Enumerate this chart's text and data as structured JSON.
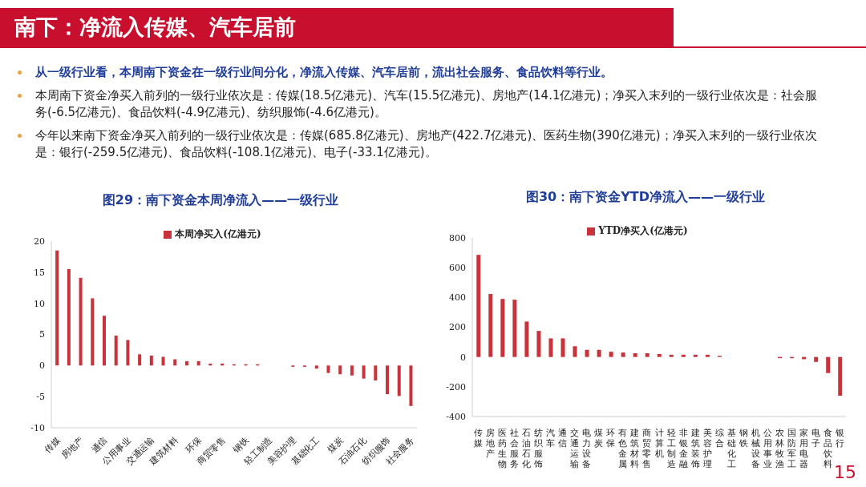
{
  "chart_data": [
    {
      "type": "other",
      "title": "南下：净流入传媒、汽车居前",
      "annotations": [
        "从一级行业看，本周南下资金在一级行业间分化，净流入传媒、汽车居前，流出社会服务、食品饮料等行业。",
        "本周南下资金净买入前列的一级行业依次是：传媒(18.5亿港元)、汽车(15.5亿港元)、房地产(14.1亿港元)；净买入末列的一级行业依次是：社会服务(-6.5亿港元)、食品饮料(-4.9亿港元)、纺织服饰(-4.6亿港元)。",
        "今年以来南下资金净买入前列的一级行业依次是：传媒(685.8亿港元)、房地产(422.7亿港元)、医药生物(390亿港元)；净买入末列的一级行业依次是：银行(-259.5亿港元)、食品饮料(-108.1亿港元)、电子(-33.1亿港元)。",
        "15"
      ]
    },
    {
      "type": "bar",
      "title": "图29：南下资金本周净流入——一级行业",
      "categories": [
        "传媒",
        null,
        "房地产",
        null,
        "通信",
        null,
        "公用事业",
        null,
        "交通运输",
        null,
        "建筑材料",
        null,
        "环保",
        null,
        "商贸零售",
        null,
        "钢铁",
        null,
        "轻工制造",
        null,
        "美容护理",
        null,
        "基础化工",
        null,
        "煤炭",
        null,
        "石油石化",
        null,
        "纺织服饰",
        null,
        "社会服务"
      ],
      "series": [
        {
          "name": "本周净买入(亿港元)",
          "color": "#c8323a",
          "values": [
            18.5,
            15.5,
            14.1,
            10.8,
            8.0,
            4.8,
            4.1,
            1.8,
            1.6,
            1.4,
            1.0,
            0.7,
            0.7,
            0.3,
            0.3,
            0.2,
            0.2,
            0.2,
            0,
            0,
            -0.2,
            -0.2,
            -0.5,
            -1.2,
            -1.4,
            -1.6,
            -2.1,
            -2.4,
            -4.6,
            -4.9,
            -6.5
          ]
        }
      ],
      "ylim": [
        -10,
        20
      ],
      "yticks": [
        -10,
        -5,
        0,
        5,
        10,
        15,
        20
      ],
      "legend": "top",
      "grid": false
    },
    {
      "type": "bar",
      "title": "图30：南下资金YTD净流入——一级行业",
      "categories": [
        "传媒",
        "房地产",
        "医药生物",
        "社会服务",
        "石油石化",
        "纺织服饰",
        "汽车",
        "通信",
        "交通运输",
        "电力设备",
        "煤炭",
        "环保",
        "有色金属",
        "建筑材料",
        "商贸零售",
        "计算机",
        "轻工制造",
        "非银金融",
        "建筑装饰",
        "美容护理",
        "综合",
        "基础化工",
        "钢铁",
        "机械设备",
        "公用事业",
        "农林牧渔",
        "国防军工",
        "家用电器",
        "电子",
        "食品饮料",
        "银行"
      ],
      "series": [
        {
          "name": "YTD净买入(亿港元)",
          "color": "#c8323a",
          "values": [
            686,
            423,
            390,
            385,
            238,
            175,
            125,
            125,
            72,
            48,
            48,
            35,
            30,
            25,
            25,
            20,
            15,
            15,
            15,
            15,
            8,
            0,
            0,
            0,
            0,
            -8,
            -8,
            -15,
            -33,
            -108,
            -260
          ]
        }
      ],
      "ylim": [
        -400,
        800
      ],
      "yticks": [
        -400,
        -200,
        0,
        200,
        400,
        600,
        800
      ],
      "legend": "top",
      "grid": false
    }
  ]
}
